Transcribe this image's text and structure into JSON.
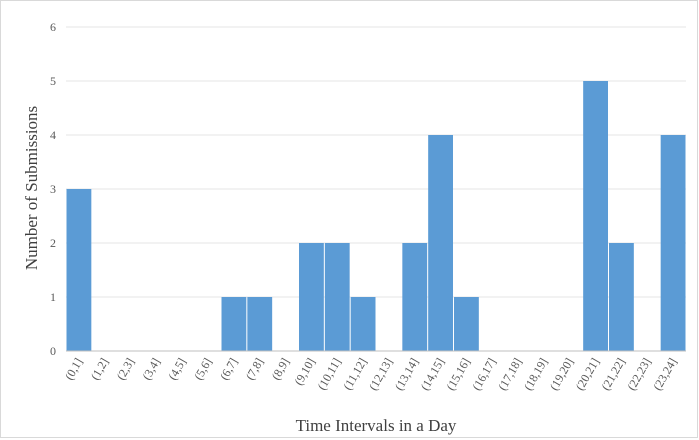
{
  "chart_data": {
    "type": "bar",
    "title": "",
    "xlabel": "Time Intervals in a Day",
    "ylabel": "Number of Submissions",
    "ylim": [
      0,
      6
    ],
    "yticks": [
      0,
      1,
      2,
      3,
      4,
      5,
      6
    ],
    "grid": "horizontal",
    "bar_color": "#5b9bd5",
    "categories": [
      "(0,1]",
      "(1,2]",
      "(2,3]",
      "(3,4]",
      "(4,5]",
      "(5,6]",
      "(6,7]",
      "(7,8]",
      "(8,9]",
      "(9,10]",
      "(10,11]",
      "(11,12]",
      "(12,13]",
      "(13,14]",
      "(14,15]",
      "(15,16]",
      "(16,17]",
      "(17,18]",
      "(18,19]",
      "(19,20]",
      "(20,21]",
      "(21,22]",
      "(22,23]",
      "(23,24]"
    ],
    "values": [
      3,
      0,
      0,
      0,
      0,
      0,
      1,
      1,
      0,
      2,
      2,
      1,
      0,
      2,
      4,
      1,
      0,
      0,
      0,
      0,
      5,
      2,
      0,
      4
    ]
  }
}
